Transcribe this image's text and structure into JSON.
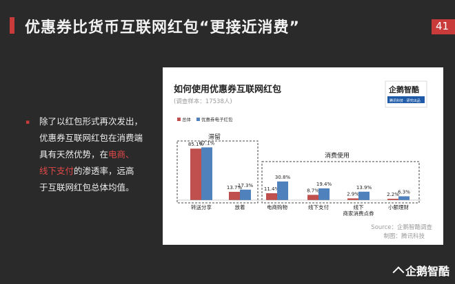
{
  "header": {
    "title": "优惠券比货币互联网红包“更接近消费”",
    "page_number": "41"
  },
  "body": {
    "bullet": "▪",
    "line1": "除了以红包形式再次发出，",
    "line2": "优惠券互联网红包在消费端",
    "line3a": "具有天然优势，在",
    "line3b": "电商、",
    "line4a": "线下支付",
    "line4b": "的渗透率，远高",
    "line5": "于互联网红包总体均值。"
  },
  "brand": {
    "logo_text": "企鹅智酷",
    "logo_subtext": "腾讯科技 · 研究出品"
  },
  "chart_data": {
    "type": "bar",
    "title": "如何使用优惠券互联网红包",
    "subtitle": "(调查样本：17538人)",
    "categories": [
      "转送分享",
      "放着",
      "电商购物",
      "线下支付",
      "线下\n商家消费点券",
      "小额理财"
    ],
    "series": [
      {
        "name": "总体",
        "color": "#c0504d",
        "values": [
          85.1,
          13.7,
          11.4,
          8.7,
          2.9,
          2.2
        ]
      },
      {
        "name": "优惠券电子红包",
        "color": "#4f81bd",
        "values": [
          87.1,
          17.3,
          30.8,
          19.4,
          13.9,
          6.3
        ]
      }
    ],
    "value_suffix": "%",
    "groups": [
      {
        "label": "滞留"
      },
      {
        "label": "消费使用"
      }
    ],
    "legend_position": "top-left",
    "grid": false,
    "ylim": [
      0,
      100
    ],
    "source_line1": "Source：企鹅智酷调查",
    "source_line2": "制图：腾讯科技"
  }
}
